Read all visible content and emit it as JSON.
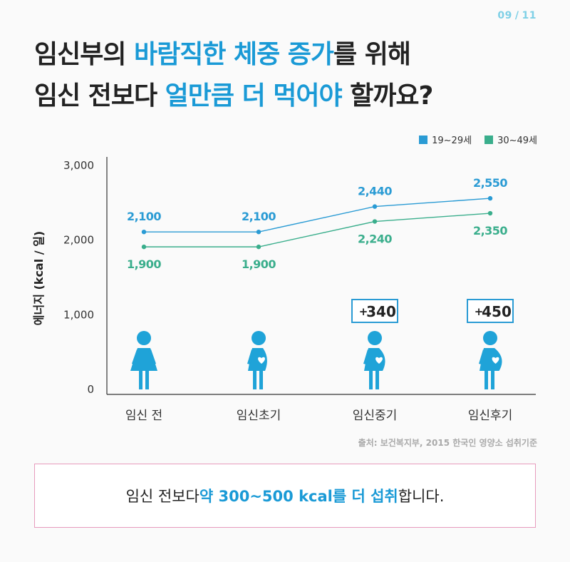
{
  "page": {
    "current": "09",
    "separator": "/",
    "total": "11"
  },
  "title": {
    "line1": {
      "pre": "임신부의 ",
      "highlight": "바람직한 체중 증가",
      "post": "를 위해"
    },
    "line2": {
      "pre": "임신 전보다 ",
      "highlight": "얼만큼 더 먹어야",
      "post": " 할까요?"
    }
  },
  "source": "출처: 보건복지부, 2015 한국인 영양소 섭취기준",
  "summary": {
    "pre": "임신 전보다 ",
    "highlight": "약 300~500 kcal를 더 섭취",
    "post": "합니다."
  },
  "colors": {
    "accent": "#1a9ad6",
    "series1": "#2a9bd4",
    "series2": "#3aae8c",
    "box": "#e79bbd",
    "figure": "#1fa3d8"
  },
  "chart_data": {
    "type": "line",
    "categories": [
      "임신 전",
      "임신초기",
      "임신중기",
      "임신후기"
    ],
    "series": [
      {
        "name": "19~29세",
        "values": [
          2100,
          2100,
          2440,
          2550
        ],
        "labels": [
          "2,100",
          "2,100",
          "2,440",
          "2,550"
        ]
      },
      {
        "name": "30~49세",
        "values": [
          1900,
          1900,
          2240,
          2350
        ],
        "labels": [
          "1,900",
          "1,900",
          "2,240",
          "2,350"
        ]
      }
    ],
    "ylabel": "에너지 (kcal / 일)",
    "ylim": [
      0,
      3000
    ],
    "yticks": [
      0,
      1000,
      2000,
      3000
    ],
    "ytick_labels": [
      "0",
      "1,000",
      "2,000",
      "3,000"
    ],
    "annotations": [
      {
        "category": "임신중기",
        "plus": "+",
        "value": "340"
      },
      {
        "category": "임신후기",
        "plus": "+",
        "value": "450"
      }
    ],
    "figure_icons": [
      "woman-icon",
      "pregnant-early-icon",
      "pregnant-mid-icon",
      "pregnant-late-icon"
    ],
    "legend_position": "top-right",
    "grid": false
  }
}
